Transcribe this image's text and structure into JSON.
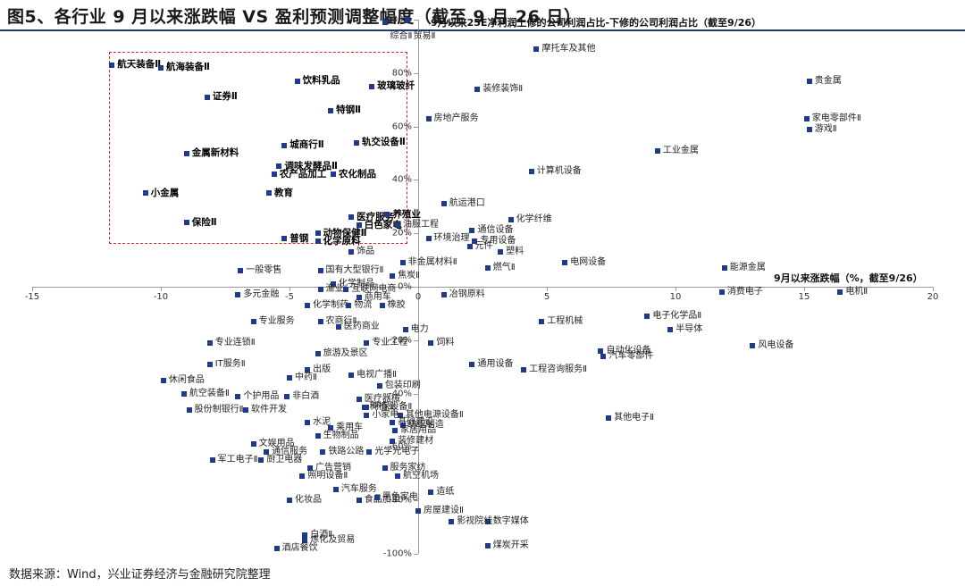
{
  "title": "图5、各行业 9 月以来涨跌幅 VS 盈利预测调整幅度（截至 9 月 26 日）",
  "source": "数据来源：Wind，兴业证券经济与金融研究院整理",
  "chart_data": {
    "type": "scatter",
    "xlabel": "9月以来涨跌幅（%，截至9/26）",
    "ylabel": "9月以来25E净利润上修的公司利润占比-下修的公司利润占比（截至9/26）",
    "xlim": [
      -15,
      20
    ],
    "ylim": [
      -100,
      100
    ],
    "x_ticks": [
      "-15",
      "-10",
      "-5",
      "0",
      "5",
      "10",
      "15",
      "20"
    ],
    "y_ticks": [
      "-100%",
      "-80%",
      "-60%",
      "-40%",
      "-20%",
      "0%",
      "20%",
      "40%",
      "60%",
      "80%",
      "100%"
    ],
    "highlight_box": {
      "x0": -12.0,
      "x1": -0.4,
      "y0": 16,
      "y1": 88
    },
    "highlighted": [
      "航天装备Ⅱ",
      "航海装备Ⅱ",
      "证券Ⅱ",
      "饮料乳品",
      "玻璃玻纤",
      "特钢Ⅱ",
      "城商行Ⅱ",
      "轨交设备Ⅱ",
      "金属新材料",
      "调味发酵品Ⅱ",
      "农化制品",
      "农产品加工",
      "小金属",
      "教育",
      "保险Ⅱ",
      "医疗服务",
      "养殖业",
      "白色家电",
      "动物保健Ⅱ",
      "普钢",
      "化学原料"
    ],
    "points": [
      [
        "综合Ⅱ",
        -1.3,
        99
      ],
      [
        "贸易Ⅱ",
        -0.4,
        100
      ],
      [
        "摩托车及其他",
        4.6,
        89
      ],
      [
        "航天装备Ⅱ",
        -11.9,
        83
      ],
      [
        "航海装备Ⅱ",
        -10.0,
        82
      ],
      [
        "证券Ⅱ",
        -8.2,
        71
      ],
      [
        "饮料乳品",
        -4.7,
        77
      ],
      [
        "玻璃玻纤",
        -1.8,
        75
      ],
      [
        "装修装饰Ⅱ",
        2.3,
        74
      ],
      [
        "贵金属",
        15.2,
        77
      ],
      [
        "特钢Ⅱ",
        -3.4,
        66
      ],
      [
        "房地产服务",
        0.4,
        63
      ],
      [
        "家电零部件Ⅱ",
        15.1,
        63
      ],
      [
        "游戏Ⅱ",
        15.2,
        59
      ],
      [
        "城商行Ⅱ",
        -5.2,
        53
      ],
      [
        "轨交设备Ⅱ",
        -2.4,
        54
      ],
      [
        "工业金属",
        9.3,
        51
      ],
      [
        "金属新材料",
        -9.0,
        50
      ],
      [
        "调味发酵品Ⅱ",
        -5.4,
        45
      ],
      [
        "农化制品",
        -3.3,
        42
      ],
      [
        "农产品加工",
        -5.6,
        42
      ],
      [
        "计算机设备",
        4.4,
        43
      ],
      [
        "小金属",
        -10.6,
        35
      ],
      [
        "教育",
        -5.8,
        35
      ],
      [
        "航运港口",
        1.0,
        31
      ],
      [
        "医疗服务",
        -2.6,
        26
      ],
      [
        "养殖业",
        -1.2,
        27
      ],
      [
        "化学纤维",
        3.6,
        25
      ],
      [
        "保险Ⅱ",
        -9.0,
        24
      ],
      [
        "白色家电",
        -2.3,
        23
      ],
      [
        "油服工程",
        -0.8,
        23
      ],
      [
        "通信设备",
        2.1,
        21
      ],
      [
        "环境治理",
        0.4,
        18
      ],
      [
        "动物保健Ⅱ",
        -3.9,
        20
      ],
      [
        "专用设备",
        2.2,
        17
      ],
      [
        "普钢",
        -5.2,
        18
      ],
      [
        "化学原料",
        -3.9,
        17
      ],
      [
        "元件",
        2.0,
        15
      ],
      [
        "饰品",
        -2.6,
        13
      ],
      [
        "塑料",
        3.2,
        13
      ],
      [
        "非金属材料Ⅱ",
        -0.6,
        9
      ],
      [
        "电网设备",
        5.7,
        9
      ],
      [
        "燃气Ⅱ",
        2.7,
        7
      ],
      [
        "能源金属",
        11.9,
        7
      ],
      [
        "一般零售",
        -6.9,
        6
      ],
      [
        "国有大型银行Ⅱ",
        -3.8,
        6
      ],
      [
        "焦炭Ⅱ",
        -1.0,
        4
      ],
      [
        "化学制品",
        -3.3,
        1
      ],
      [
        "渔业",
        -3.8,
        -1
      ],
      [
        "互联网电商",
        -2.8,
        -1
      ],
      [
        "电机Ⅱ",
        16.4,
        -2
      ],
      [
        "消费电子",
        11.8,
        -2
      ],
      [
        "冶钢原料",
        1.0,
        -3
      ],
      [
        "多元金融",
        -7.0,
        -3
      ],
      [
        "商用车",
        -2.3,
        -4
      ],
      [
        "化学制药",
        -4.3,
        -7
      ],
      [
        "物流",
        -2.7,
        -7
      ],
      [
        "橡胶",
        -1.4,
        -7
      ],
      [
        "电子化学品Ⅱ",
        8.9,
        -11
      ],
      [
        "工程机械",
        4.8,
        -13
      ],
      [
        "专业服务",
        -6.4,
        -13
      ],
      [
        "农商行Ⅱ",
        -3.8,
        -13
      ],
      [
        "医药商业",
        -3.1,
        -15
      ],
      [
        "电力",
        -0.5,
        -16
      ],
      [
        "半导体",
        9.8,
        -16
      ],
      [
        "专业连锁Ⅱ",
        -8.1,
        -21
      ],
      [
        "饲料",
        0.5,
        -21
      ],
      [
        "专业工程",
        -2.0,
        -21
      ],
      [
        "自动化设备",
        7.1,
        -24
      ],
      [
        "风电设备",
        13.0,
        -22
      ],
      [
        "旅游及景区",
        -3.9,
        -25
      ],
      [
        "汽车零部件",
        7.2,
        -26
      ],
      [
        "IT服务Ⅱ",
        -8.1,
        -29
      ],
      [
        "通用设备",
        2.1,
        -29
      ],
      [
        "出版",
        -4.3,
        -31
      ],
      [
        "工程咨询服务Ⅱ",
        4.1,
        -31
      ],
      [
        "中药Ⅱ",
        -5.0,
        -34
      ],
      [
        "电视广播Ⅱ",
        -2.6,
        -33
      ],
      [
        "休闲食品",
        -9.9,
        -35
      ],
      [
        "包装印刷",
        -1.5,
        -37
      ],
      [
        "航空装备Ⅱ",
        -9.1,
        -40
      ],
      [
        "个护用品",
        -7.0,
        -41
      ],
      [
        "非白酒",
        -5.1,
        -41
      ],
      [
        "医疗器械",
        -2.3,
        -42
      ],
      [
        "种植业",
        -2.1,
        -45
      ],
      [
        "环保设备Ⅱ",
        -2.0,
        -45
      ],
      [
        "股份制银行Ⅱ",
        -8.9,
        -46
      ],
      [
        "软件开发",
        -6.7,
        -46
      ],
      [
        "小家电",
        -2.0,
        -48
      ],
      [
        "其他电源设备Ⅱ",
        -0.7,
        -48
      ],
      [
        "其他电子Ⅱ",
        7.4,
        -49
      ],
      [
        "水泥",
        -4.3,
        -51
      ],
      [
        "基础建设",
        -1.0,
        -51
      ],
      [
        "纺织制造",
        -0.6,
        -52
      ],
      [
        "乘用车",
        -3.4,
        -53
      ],
      [
        "家居用品",
        -0.9,
        -54
      ],
      [
        "生物制品",
        -3.9,
        -56
      ],
      [
        "装修建材",
        -1.0,
        -58
      ],
      [
        "文娱用品",
        -6.4,
        -59
      ],
      [
        "通信服务",
        -5.9,
        -62
      ],
      [
        "铁路公路",
        -3.7,
        -62
      ],
      [
        "光学光电子",
        -1.9,
        -62
      ],
      [
        "军工电子Ⅱ",
        -8.0,
        -65
      ],
      [
        "厨卫电器",
        -6.1,
        -65
      ],
      [
        "广告营销",
        -4.2,
        -68
      ],
      [
        "服务家纺",
        -1.3,
        -68
      ],
      [
        "照明设备Ⅱ",
        -4.5,
        -71
      ],
      [
        "航空机场",
        -0.8,
        -71
      ],
      [
        "汽车服务",
        -3.2,
        -76
      ],
      [
        "造纸",
        0.5,
        -77
      ],
      [
        "化妆品",
        -5.0,
        -80
      ],
      [
        "食品加工",
        -2.3,
        -80
      ],
      [
        "黑色家电",
        -1.6,
        -79
      ],
      [
        "房屋建设Ⅱ",
        0.0,
        -84
      ],
      [
        "数字媒体",
        2.7,
        -88
      ],
      [
        "影视院线",
        1.3,
        -88
      ],
      [
        "白酒Ⅱ",
        -4.4,
        -93
      ],
      [
        "炼化及贸易",
        -4.4,
        -95
      ],
      [
        "煤炭开采",
        2.7,
        -97
      ],
      [
        "酒店餐饮",
        -5.5,
        -98
      ]
    ]
  }
}
